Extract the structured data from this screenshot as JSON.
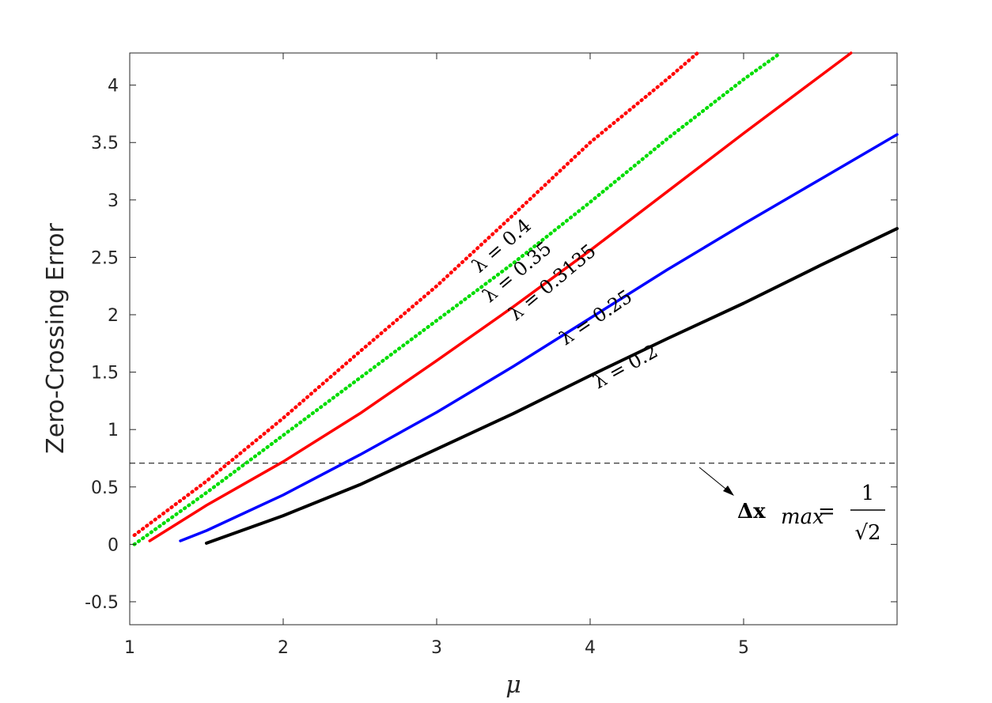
{
  "chart_data": {
    "type": "line",
    "xlabel": "μ",
    "ylabel": "Zero-Crossing Error",
    "xlim": [
      1,
      6
    ],
    "ylim": [
      -0.7,
      4.28
    ],
    "xticks": [
      1,
      2,
      3,
      4,
      5
    ],
    "xtick_labels": [
      "1",
      "2",
      "3",
      "4",
      "5"
    ],
    "yticks": [
      -0.5,
      0,
      0.5,
      1,
      1.5,
      2,
      2.5,
      3,
      3.5,
      4
    ],
    "ytick_labels": [
      "-0.5",
      "0",
      "0.5",
      "1",
      "1.5",
      "2",
      "2.5",
      "3",
      "3.5",
      "4"
    ],
    "grid": false,
    "series": [
      {
        "name": "λ = 0.4",
        "color": "#ff0000",
        "style": "dotted",
        "x": [
          1.03,
          1.5,
          2,
          2.5,
          3,
          3.5,
          4,
          4.5,
          4.7
        ],
        "y": [
          0.08,
          0.55,
          1.1,
          1.68,
          2.25,
          2.87,
          3.5,
          4.05,
          4.28
        ]
      },
      {
        "name": "λ = 0.35",
        "color": "#00dd00",
        "style": "dotted",
        "x": [
          1.03,
          1.5,
          2,
          2.5,
          3,
          3.5,
          4,
          4.5,
          5,
          5.24
        ],
        "y": [
          0.0,
          0.45,
          0.95,
          1.45,
          1.95,
          2.45,
          2.98,
          3.53,
          4.05,
          4.28
        ]
      },
      {
        "name": "λ = 0.3135",
        "color": "#ff0000",
        "style": "solid",
        "x": [
          1.13,
          1.5,
          2,
          2.5,
          3,
          3.5,
          4,
          4.5,
          5,
          5.5,
          5.7
        ],
        "y": [
          0.03,
          0.34,
          0.72,
          1.14,
          1.6,
          2.07,
          2.56,
          3.07,
          3.58,
          4.08,
          4.28
        ]
      },
      {
        "name": "λ = 0.25",
        "color": "#0000ff",
        "style": "solid",
        "x": [
          1.33,
          1.5,
          2,
          2.5,
          3,
          3.5,
          4,
          4.5,
          5,
          5.5,
          6
        ],
        "y": [
          0.03,
          0.12,
          0.43,
          0.78,
          1.15,
          1.55,
          1.97,
          2.39,
          2.79,
          3.18,
          3.57
        ]
      },
      {
        "name": "λ = 0.2",
        "color": "#000000",
        "style": "solid",
        "x": [
          1.5,
          2,
          2.5,
          3,
          3.5,
          4,
          4.5,
          5,
          5.5,
          6
        ],
        "y": [
          0.01,
          0.25,
          0.52,
          0.83,
          1.14,
          1.47,
          1.79,
          2.1,
          2.43,
          2.75
        ]
      }
    ],
    "curve_labels": [
      {
        "text": "λ = 0.4",
        "color": "#000000"
      },
      {
        "text": "λ = 0.35",
        "color": "#000000"
      },
      {
        "text": "λ = 0.3135",
        "color": "#000000"
      },
      {
        "text": "λ = 0.25",
        "color": "#000000"
      },
      {
        "text": "λ = 0.2",
        "color": "#000000"
      }
    ],
    "reference_line": {
      "y": 0.7071,
      "style": "dashed",
      "color": "#000000",
      "label_lhs": "Δx",
      "label_sub": "max",
      "label_eq": "=",
      "label_num": "1",
      "label_den": "√2"
    }
  }
}
